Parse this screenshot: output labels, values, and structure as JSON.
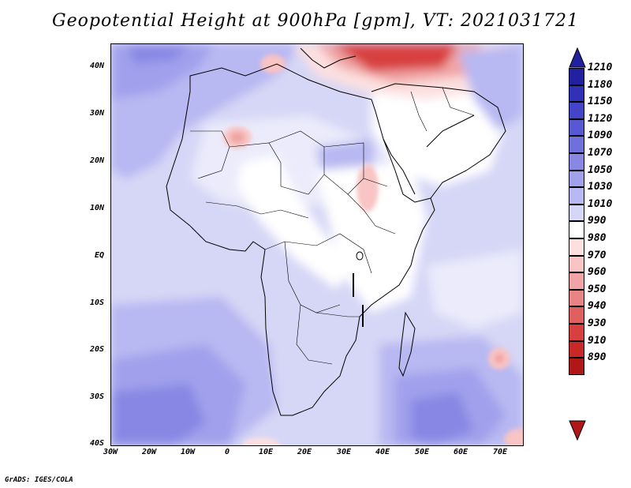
{
  "title": "Geopotential Height at 900hPa [gpm], VT: 2021031721",
  "credit": "GrADS: IGES/COLA",
  "map": {
    "region": "Africa",
    "lat_labels": [
      "40N",
      "30N",
      "20N",
      "10N",
      "EQ",
      "10S",
      "20S",
      "30S",
      "40S"
    ],
    "lon_labels": [
      "30W",
      "20W",
      "10W",
      "0",
      "10E",
      "20E",
      "30E",
      "40E",
      "50E",
      "60E",
      "70E"
    ]
  },
  "colorbar": {
    "levels": [
      "1210",
      "1180",
      "1150",
      "1120",
      "1090",
      "1070",
      "1050",
      "1030",
      "1010",
      "990",
      "980",
      "970",
      "960",
      "950",
      "940",
      "930",
      "910",
      "890"
    ],
    "colors": [
      "#2020a0",
      "#3030b8",
      "#4444c8",
      "#5858d4",
      "#7070dc",
      "#8888e4",
      "#a0a0ec",
      "#b8b8f2",
      "#d6d6f6",
      "#ffffff",
      "#fce0e0",
      "#f8c4c4",
      "#f0a4a4",
      "#e88484",
      "#e06060",
      "#d84040",
      "#c82828",
      "#b01818"
    ]
  }
}
